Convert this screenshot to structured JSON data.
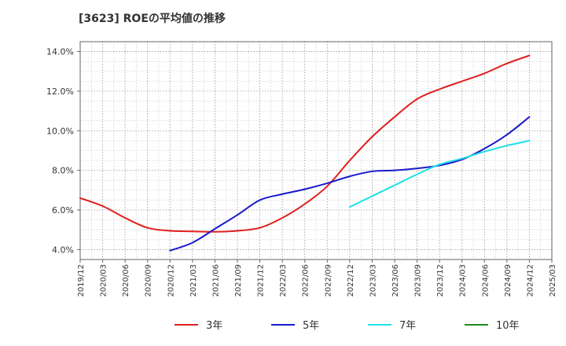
{
  "chart_data": {
    "type": "line",
    "title": "[3623]  ROEの平均値の推移",
    "xlabel": "",
    "ylabel": "",
    "ylim": [
      3.5,
      14.5
    ],
    "y_ticks": [
      4.0,
      6.0,
      8.0,
      10.0,
      12.0,
      14.0
    ],
    "y_tick_labels": [
      "4.0%",
      "6.0%",
      "8.0%",
      "10.0%",
      "12.0%",
      "14.0%"
    ],
    "x_tick_labels": [
      "2019/12",
      "2020/03",
      "2020/06",
      "2020/09",
      "2020/12",
      "2021/03",
      "2021/06",
      "2021/09",
      "2021/12",
      "2022/03",
      "2022/06",
      "2022/09",
      "2022/12",
      "2023/03",
      "2023/06",
      "2023/09",
      "2023/12",
      "2024/03",
      "2024/06",
      "2024/09",
      "2024/12",
      "2025/03"
    ],
    "grid": true,
    "legend_position": "bottom",
    "series": [
      {
        "name": "3年",
        "color": "#e02020",
        "points": [
          [
            0,
            6.6
          ],
          [
            1,
            6.2
          ],
          [
            2,
            5.6
          ],
          [
            3,
            5.1
          ],
          [
            4,
            4.95
          ],
          [
            5,
            4.92
          ],
          [
            6,
            4.9
          ],
          [
            7,
            4.95
          ],
          [
            8,
            5.1
          ],
          [
            9,
            5.6
          ],
          [
            10,
            6.3
          ],
          [
            11,
            7.2
          ],
          [
            12,
            8.5
          ],
          [
            13,
            9.7
          ],
          [
            14,
            10.7
          ],
          [
            15,
            11.6
          ],
          [
            16,
            12.1
          ],
          [
            17,
            12.5
          ],
          [
            18,
            12.9
          ],
          [
            19,
            13.4
          ],
          [
            20,
            13.8
          ]
        ]
      },
      {
        "name": "5年",
        "color": "#1a1acc",
        "points": [
          [
            4,
            3.95
          ],
          [
            5,
            4.35
          ],
          [
            6,
            5.05
          ],
          [
            7,
            5.75
          ],
          [
            8,
            6.5
          ],
          [
            9,
            6.8
          ],
          [
            10,
            7.05
          ],
          [
            11,
            7.35
          ],
          [
            12,
            7.7
          ],
          [
            13,
            7.95
          ],
          [
            14,
            8.0
          ],
          [
            15,
            8.1
          ],
          [
            16,
            8.25
          ],
          [
            17,
            8.55
          ],
          [
            18,
            9.1
          ],
          [
            19,
            9.8
          ],
          [
            20,
            10.7
          ]
        ]
      },
      {
        "name": "7年",
        "color": "#20e0e8",
        "points": [
          [
            12,
            6.15
          ],
          [
            13,
            6.7
          ],
          [
            14,
            7.25
          ],
          [
            15,
            7.8
          ],
          [
            16,
            8.3
          ],
          [
            17,
            8.6
          ],
          [
            18,
            8.95
          ],
          [
            19,
            9.25
          ],
          [
            20,
            9.5
          ]
        ]
      },
      {
        "name": "10年",
        "color": "#228b22",
        "points": []
      }
    ]
  }
}
